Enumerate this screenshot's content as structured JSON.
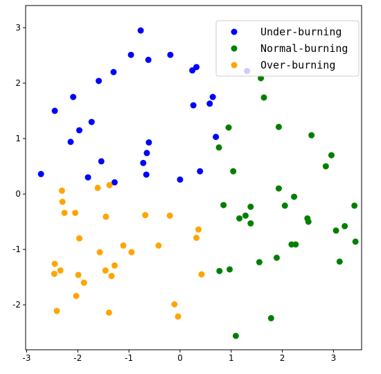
{
  "chart_data": {
    "type": "scatter",
    "xlim": [
      -3.02,
      3.55
    ],
    "ylim": [
      -2.81,
      3.4
    ],
    "xticks": [
      -3,
      -2,
      -1,
      0,
      1,
      2,
      3
    ],
    "yticks": [
      -2,
      -1,
      0,
      1,
      2,
      3
    ],
    "legend": "upper right",
    "series": [
      {
        "name": "Under-burning",
        "color": "#0000ff",
        "x": [
          -0.77,
          -0.96,
          -0.62,
          -0.19,
          -1.3,
          -1.59,
          0.24,
          0.32,
          1.31,
          -2.45,
          -2.09,
          0.64,
          0.58,
          0.26,
          -1.73,
          -1.97,
          -2.14,
          0.7,
          -0.61,
          -0.65,
          -1.54,
          -0.72,
          0.39,
          -2.72,
          -0.66,
          -1.8,
          -1.28,
          0.0
        ],
        "values": [
          2.95,
          2.51,
          2.42,
          2.51,
          2.2,
          2.04,
          2.23,
          2.29,
          2.22,
          1.5,
          1.75,
          1.75,
          1.63,
          1.6,
          1.3,
          1.15,
          0.94,
          1.03,
          0.93,
          0.74,
          0.59,
          0.56,
          0.41,
          0.36,
          0.35,
          0.3,
          0.21,
          0.26
        ]
      },
      {
        "name": "Normal-burning",
        "color": "#008000",
        "x": [
          1.58,
          1.64,
          0.95,
          1.93,
          2.57,
          0.76,
          2.96,
          2.85,
          1.04,
          1.93,
          2.23,
          0.85,
          2.05,
          1.38,
          3.41,
          1.28,
          1.16,
          2.49,
          2.51,
          1.38,
          3.22,
          3.05,
          2.18,
          2.26,
          3.43,
          1.55,
          1.89,
          3.12,
          0.97,
          0.77,
          1.78,
          1.09
        ],
        "values": [
          2.09,
          1.74,
          1.2,
          1.21,
          1.06,
          0.84,
          0.7,
          0.5,
          0.41,
          0.1,
          -0.05,
          -0.2,
          -0.21,
          -0.23,
          -0.21,
          -0.39,
          -0.44,
          -0.44,
          -0.5,
          -0.53,
          -0.58,
          -0.66,
          -0.91,
          -0.91,
          -0.86,
          -1.23,
          -1.15,
          -1.22,
          -1.36,
          -1.39,
          -2.24,
          -2.56
        ]
      },
      {
        "name": "Over-burning",
        "color": "#ffa500",
        "x": [
          -2.31,
          -2.3,
          -1.61,
          -1.38,
          -2.26,
          -2.05,
          -1.45,
          -0.68,
          -0.2,
          0.36,
          -1.97,
          0.32,
          -1.11,
          -0.42,
          -0.95,
          -1.57,
          -2.45,
          -1.28,
          -2.34,
          -1.46,
          -2.46,
          0.42,
          -1.99,
          -1.34,
          -1.88,
          -2.03,
          -0.11,
          -2.41,
          -1.39,
          -0.04
        ],
        "values": [
          0.06,
          -0.14,
          0.11,
          0.16,
          -0.34,
          -0.34,
          -0.41,
          -0.38,
          -0.39,
          -0.64,
          -0.8,
          -0.79,
          -0.93,
          -0.93,
          -1.05,
          -1.05,
          -1.26,
          -1.29,
          -1.38,
          -1.38,
          -1.44,
          -1.45,
          -1.46,
          -1.48,
          -1.6,
          -1.84,
          -1.99,
          -2.11,
          -2.14,
          -2.21
        ]
      }
    ]
  }
}
